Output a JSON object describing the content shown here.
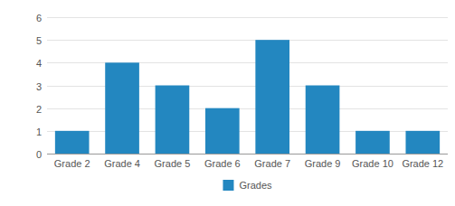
{
  "chart_data": {
    "type": "bar",
    "categories": [
      "Grade 2",
      "Grade 4",
      "Grade 5",
      "Grade 6",
      "Grade 7",
      "Grade 9",
      "Grade 10",
      "Grade 12"
    ],
    "series": [
      {
        "name": "Grades",
        "color": "#2387c0",
        "values": [
          1,
          4,
          3,
          2,
          5,
          3,
          1,
          1
        ]
      }
    ],
    "ylim": [
      0,
      6
    ],
    "yticks": [
      0,
      1,
      2,
      3,
      4,
      5,
      6
    ],
    "grid": true,
    "legend": "bottom"
  }
}
